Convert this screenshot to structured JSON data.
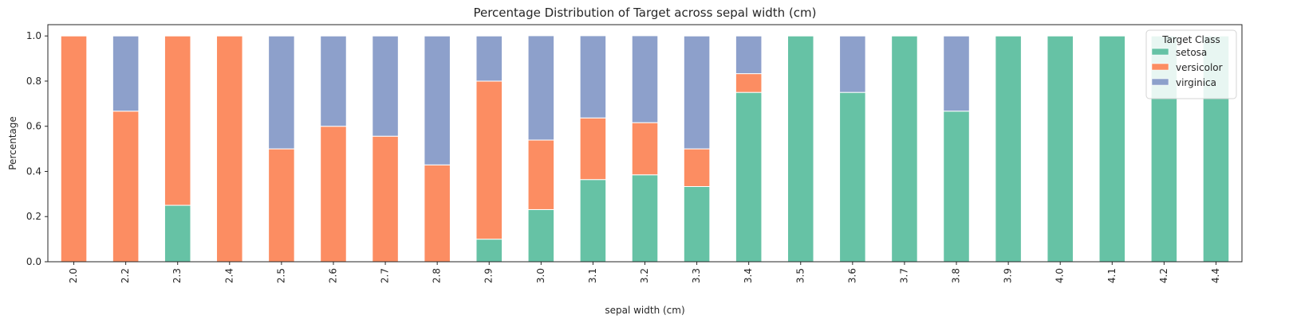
{
  "chart_data": {
    "type": "bar",
    "stacked": true,
    "title": "Percentage Distribution of Target across sepal width (cm)",
    "xlabel": "sepal width (cm)",
    "ylabel": "Percentage",
    "ylim": [
      0,
      1.05
    ],
    "yticks": [
      "0.0",
      "0.2",
      "0.4",
      "0.6",
      "0.8",
      "1.0"
    ],
    "grid": false,
    "legend": {
      "title": "Target Class",
      "placement": "top-right"
    },
    "categories": [
      "2.0",
      "2.2",
      "2.3",
      "2.4",
      "2.5",
      "2.6",
      "2.7",
      "2.8",
      "2.9",
      "3.0",
      "3.1",
      "3.2",
      "3.3",
      "3.4",
      "3.5",
      "3.6",
      "3.7",
      "3.8",
      "3.9",
      "4.0",
      "4.1",
      "4.2",
      "4.4"
    ],
    "series": [
      {
        "name": "setosa",
        "color": "#66c2a5",
        "values": [
          0,
          0,
          0.25,
          0,
          0,
          0,
          0,
          0,
          0.1,
          0.231,
          0.364,
          0.385,
          0.333,
          0.75,
          1,
          0.75,
          1,
          0.667,
          1,
          1,
          1,
          1,
          1
        ]
      },
      {
        "name": "versicolor",
        "color": "#fc8d62",
        "values": [
          1,
          0.667,
          0.75,
          1,
          0.5,
          0.6,
          0.556,
          0.429,
          0.7,
          0.308,
          0.273,
          0.231,
          0.167,
          0.083,
          0,
          0,
          0,
          0,
          0,
          0,
          0,
          0,
          0
        ]
      },
      {
        "name": "virginica",
        "color": "#8da0cb",
        "values": [
          0,
          0.333,
          0,
          0,
          0.5,
          0.4,
          0.444,
          0.571,
          0.2,
          0.462,
          0.364,
          0.385,
          0.5,
          0.167,
          0,
          0.25,
          0,
          0.333,
          0,
          0,
          0,
          0,
          0
        ]
      }
    ]
  }
}
